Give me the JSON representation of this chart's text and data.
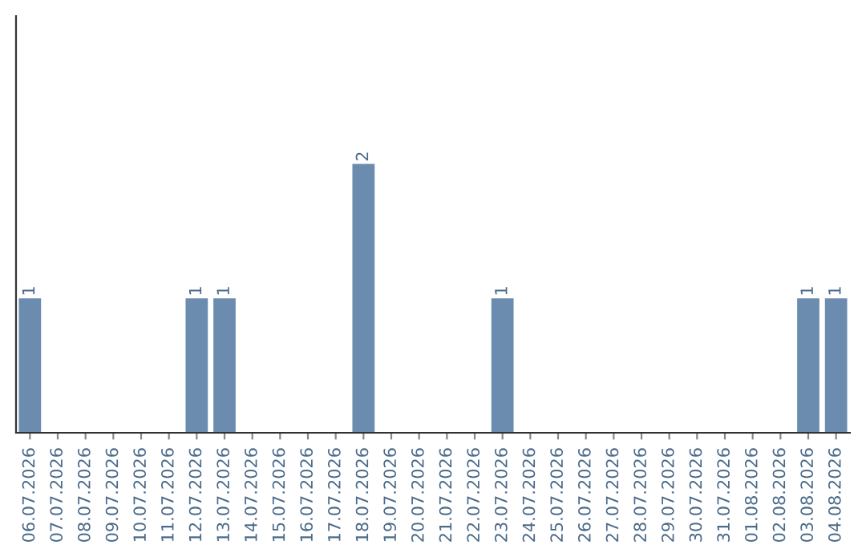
{
  "chart_data": {
    "type": "bar",
    "categories": [
      "06.07.2026",
      "07.07.2026",
      "08.07.2026",
      "09.07.2026",
      "10.07.2026",
      "11.07.2026",
      "12.07.2026",
      "13.07.2026",
      "14.07.2026",
      "15.07.2026",
      "16.07.2026",
      "17.07.2026",
      "18.07.2026",
      "19.07.2026",
      "20.07.2026",
      "21.07.2026",
      "22.07.2026",
      "23.07.2026",
      "24.07.2026",
      "25.07.2026",
      "26.07.2026",
      "27.07.2026",
      "28.07.2026",
      "29.07.2026",
      "30.07.2026",
      "31.07.2026",
      "01.08.2026",
      "02.08.2026",
      "03.08.2026",
      "04.08.2026"
    ],
    "values": [
      1,
      0,
      0,
      0,
      0,
      0,
      1,
      1,
      0,
      0,
      0,
      0,
      2,
      0,
      0,
      0,
      0,
      1,
      0,
      0,
      0,
      0,
      0,
      0,
      0,
      0,
      0,
      0,
      1,
      1
    ],
    "value_labels": [
      "1",
      null,
      null,
      null,
      null,
      null,
      "1",
      "1",
      null,
      null,
      null,
      null,
      "2",
      null,
      null,
      null,
      null,
      "1",
      null,
      null,
      null,
      null,
      null,
      null,
      null,
      null,
      null,
      null,
      "1",
      "1"
    ],
    "color": "#6b8cae",
    "tick_labels": "x",
    "grid": false
  }
}
